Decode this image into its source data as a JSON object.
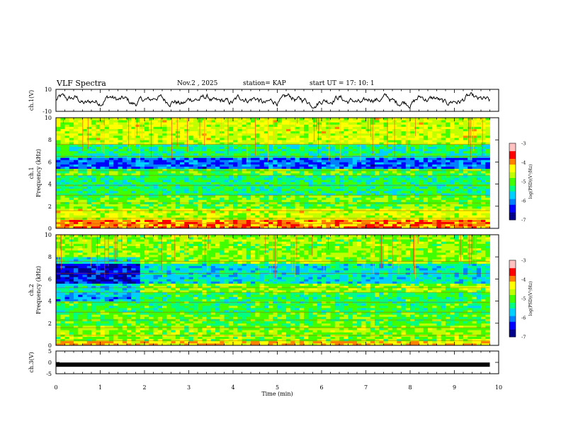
{
  "header": {
    "title": "VLF Spectra",
    "date": "Nov.2 , 2025",
    "station": "station= KAP",
    "start_ut": "start UT = 17: 10: 1"
  },
  "colors": {
    "cmap": [
      "#00008b",
      "#0000ff",
      "#0080ff",
      "#00d0ff",
      "#00ff80",
      "#40ff00",
      "#c0ff00",
      "#ffff00",
      "#ff8000",
      "#ff0000",
      "#ffc0c0",
      "#ffffff"
    ],
    "line": "#000000"
  },
  "chart_data": [
    {
      "type": "line",
      "name": "ch1-waveform",
      "ylabel": "ch.1(V)",
      "ylim": [
        -10,
        10
      ],
      "yticks": [
        "10",
        "-10"
      ],
      "xlim": [
        0,
        10
      ],
      "description_values": "noisy voltage trace around 0 V, amplitude about ±4 V, to t≈9.8 min"
    },
    {
      "type": "heatmap",
      "name": "ch1-spectrogram",
      "ylabel": "ch.1\nFrequency (kHz)",
      "ylim": [
        0,
        10
      ],
      "yticks": [
        "0",
        "2",
        "4",
        "6",
        "8",
        "10"
      ],
      "xlim": [
        0,
        9.8
      ],
      "bands": [
        {
          "f0": 0.0,
          "f1": 0.8,
          "level": 0.78
        },
        {
          "f0": 0.8,
          "f1": 1.8,
          "level": 0.62
        },
        {
          "f0": 1.8,
          "f1": 3.0,
          "level": 0.52
        },
        {
          "f0": 3.0,
          "f1": 4.8,
          "level": 0.42
        },
        {
          "f0": 4.8,
          "f1": 5.4,
          "level": 0.5
        },
        {
          "f0": 5.4,
          "f1": 6.5,
          "level": 0.2
        },
        {
          "f0": 6.5,
          "f1": 7.6,
          "level": 0.42
        },
        {
          "f0": 7.6,
          "f1": 10.0,
          "level": 0.62
        }
      ]
    },
    {
      "type": "heatmap",
      "name": "ch2-spectrogram",
      "ylabel": "ch.2\nFrequency (kHz)",
      "ylim": [
        0,
        10
      ],
      "yticks": [
        "0",
        "2",
        "4",
        "6",
        "8",
        "10"
      ],
      "xlim": [
        0,
        9.8
      ],
      "bands": [
        {
          "f0": 0.0,
          "f1": 0.4,
          "level": 0.7
        },
        {
          "f0": 0.4,
          "f1": 1.8,
          "level": 0.55
        },
        {
          "f0": 1.8,
          "f1": 3.0,
          "level": 0.5
        },
        {
          "f0": 3.0,
          "f1": 4.9,
          "level": 0.45
        },
        {
          "f0": 4.9,
          "f1": 5.6,
          "level": 0.55
        },
        {
          "f0": 5.6,
          "f1": 7.4,
          "level": 0.3
        },
        {
          "f0": 7.4,
          "f1": 10.0,
          "level": 0.55
        }
      ]
    },
    {
      "type": "line",
      "name": "ch3-waveform",
      "ylabel": "ch.3(V)",
      "ylim": [
        -5,
        5
      ],
      "yticks": [
        "5",
        "0",
        "-5"
      ],
      "xlim": [
        0,
        10
      ],
      "value": -1.0
    }
  ],
  "colorbar": {
    "label": "log(PSD)(V²/Hz)",
    "ticks": [
      "-3",
      "-4",
      "-5",
      "-6",
      "-7"
    ],
    "range": [
      -7,
      -3
    ]
  },
  "xaxis": {
    "label": "Time (min)",
    "ticks": [
      "0",
      "1",
      "2",
      "3",
      "4",
      "5",
      "6",
      "7",
      "8",
      "9",
      "10"
    ],
    "range": [
      0,
      10
    ]
  }
}
